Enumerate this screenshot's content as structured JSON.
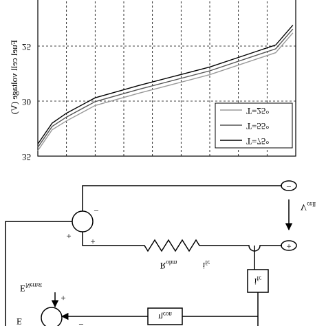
{
  "chart_data": {
    "type": "line",
    "y_label": "Fuel cell voltage (V)",
    "x": [
      0,
      0.5,
      1,
      2,
      3.5,
      6,
      8.3,
      8.9
    ],
    "series": [
      {
        "name": "T=25°",
        "color": "#999999",
        "values": [
          34.5,
          32.6,
          31.8,
          30.4,
          29.3,
          27.6,
          25.6,
          23.8
        ]
      },
      {
        "name": "T=55°",
        "color": "#555555",
        "values": [
          34.2,
          32.3,
          31.45,
          30.05,
          28.95,
          27.25,
          25.25,
          23.45
        ]
      },
      {
        "name": "T=75°",
        "color": "#000000",
        "values": [
          33.9,
          32.0,
          31.1,
          29.7,
          28.6,
          26.9,
          24.9,
          23.1
        ]
      }
    ],
    "xlim": [
      0,
      9
    ],
    "xticks": [
      1,
      2,
      3,
      4,
      5,
      6,
      7,
      8
    ],
    "ylim": [
      20,
      35
    ],
    "yticks": [
      25,
      30,
      35
    ],
    "grid": true
  },
  "diagram": {
    "v_cell": {
      "main": "V",
      "sub": "cell"
    },
    "r_ohm": {
      "main": "R",
      "sub": "ohm"
    },
    "i_fc_wire": {
      "main": "i",
      "sub": "fc"
    },
    "i_fc_box": {
      "main": "i",
      "sub": "fc"
    },
    "eta_con": {
      "main": "η",
      "sub": "con"
    },
    "e_nernst": {
      "main": "E",
      "sub": "Nernst"
    },
    "e_out": "E",
    "signs": [
      "−",
      "+",
      "+",
      "+",
      "−",
      "−",
      "+"
    ]
  }
}
